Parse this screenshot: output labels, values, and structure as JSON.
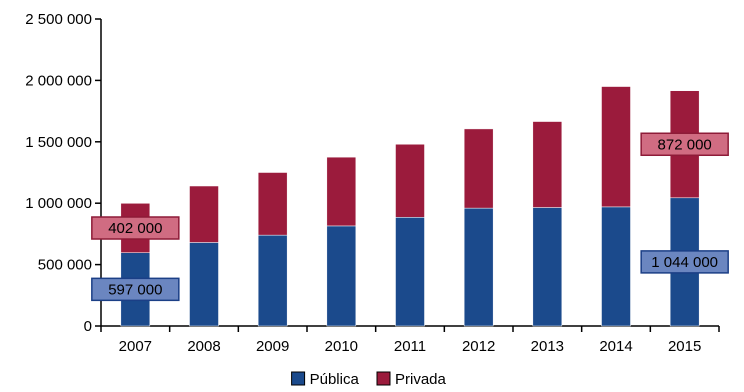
{
  "chart_data": {
    "type": "bar",
    "stacked": true,
    "categories": [
      "2007",
      "2008",
      "2009",
      "2010",
      "2011",
      "2012",
      "2013",
      "2014",
      "2015"
    ],
    "series": [
      {
        "name": "Pública",
        "color": "#1b4a8c",
        "values": [
          597000,
          680000,
          740000,
          815000,
          885000,
          960000,
          965000,
          970000,
          1044000
        ]
      },
      {
        "name": "Privada",
        "color": "#9b1b3c",
        "values": [
          402000,
          460000,
          510000,
          560000,
          595000,
          645000,
          700000,
          980000,
          872000
        ]
      }
    ],
    "ylim": [
      0,
      2500000
    ],
    "yticks": [
      {
        "value": 0,
        "label": "0"
      },
      {
        "value": 500000,
        "label": "500 000"
      },
      {
        "value": 1000000,
        "label": "1 000 000"
      },
      {
        "value": 1500000,
        "label": "1 500 000"
      },
      {
        "value": 2000000,
        "label": "2 000 000"
      },
      {
        "value": 2500000,
        "label": "2 500 000"
      }
    ],
    "annotations": [
      {
        "category": "2007",
        "series": "Privada",
        "text": "402 000"
      },
      {
        "category": "2007",
        "series": "Pública",
        "text": "597 000"
      },
      {
        "category": "2015",
        "series": "Privada",
        "text": "872 000"
      },
      {
        "category": "2015",
        "series": "Pública",
        "text": "1 044 000"
      }
    ],
    "grid": false,
    "legend": "bottom-center",
    "title": "",
    "xlabel": "",
    "ylabel": ""
  }
}
